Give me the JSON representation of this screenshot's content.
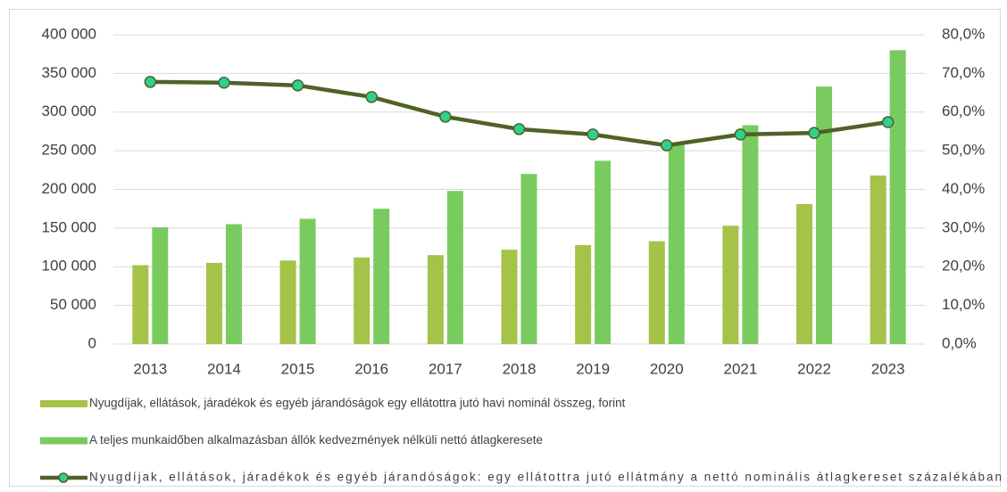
{
  "chart_data": {
    "type": "bar",
    "categories": [
      "2013",
      "2014",
      "2015",
      "2016",
      "2017",
      "2018",
      "2019",
      "2020",
      "2021",
      "2022",
      "2023"
    ],
    "series": [
      {
        "name": "Nyugdíjak, ellátások, járadékok és egyéb járandóságok egy ellátottra jutó havi nominál összeg, forint",
        "color": "#a5c249",
        "type": "bar",
        "values": [
          102000,
          105000,
          108000,
          112000,
          115000,
          122000,
          128000,
          133000,
          153000,
          181000,
          218000
        ]
      },
      {
        "name": "A teljes munkaidőben alkalmazásban állók kedvezmények nélküli nettó átlagkeresete",
        "color": "#7acb5f",
        "type": "bar",
        "values": [
          151000,
          155000,
          162000,
          175000,
          198000,
          220000,
          237000,
          260000,
          283000,
          333000,
          380000
        ]
      },
      {
        "name": "Nyugdíjak, ellátások, járadékok és egyéb járandóságok: egy ellátottra jutó ellátmány a nettó nominális átlagkereset százalékában",
        "color": "#4f6228",
        "marker_color": "#2ed18f",
        "type": "line",
        "axis": "y2",
        "values": [
          67.8,
          67.6,
          66.9,
          63.9,
          58.8,
          55.6,
          54.2,
          51.4,
          54.2,
          54.6,
          57.4
        ]
      }
    ],
    "ylim": [
      0,
      400000
    ],
    "yticks": [
      {
        "value": 0,
        "label": "0"
      },
      {
        "value": 50000,
        "label": "50 000"
      },
      {
        "value": 100000,
        "label": "100 000"
      },
      {
        "value": 150000,
        "label": "150 000"
      },
      {
        "value": 200000,
        "label": "200 000"
      },
      {
        "value": 250000,
        "label": "250 000"
      },
      {
        "value": 300000,
        "label": "300 000"
      },
      {
        "value": 350000,
        "label": "350 000"
      },
      {
        "value": 400000,
        "label": "400 000"
      }
    ],
    "y2lim": [
      0,
      80
    ],
    "y2ticks": [
      {
        "value": 0,
        "label": "0,0%"
      },
      {
        "value": 10,
        "label": "10,0%"
      },
      {
        "value": 20,
        "label": "20,0%"
      },
      {
        "value": 30,
        "label": "30,0%"
      },
      {
        "value": 40,
        "label": "40,0%"
      },
      {
        "value": 50,
        "label": "50,0%"
      },
      {
        "value": 60,
        "label": "60,0%"
      },
      {
        "value": 70,
        "label": "70,0%"
      },
      {
        "value": 80,
        "label": "80,0%"
      }
    ],
    "grid": true,
    "legend": "bottom"
  }
}
